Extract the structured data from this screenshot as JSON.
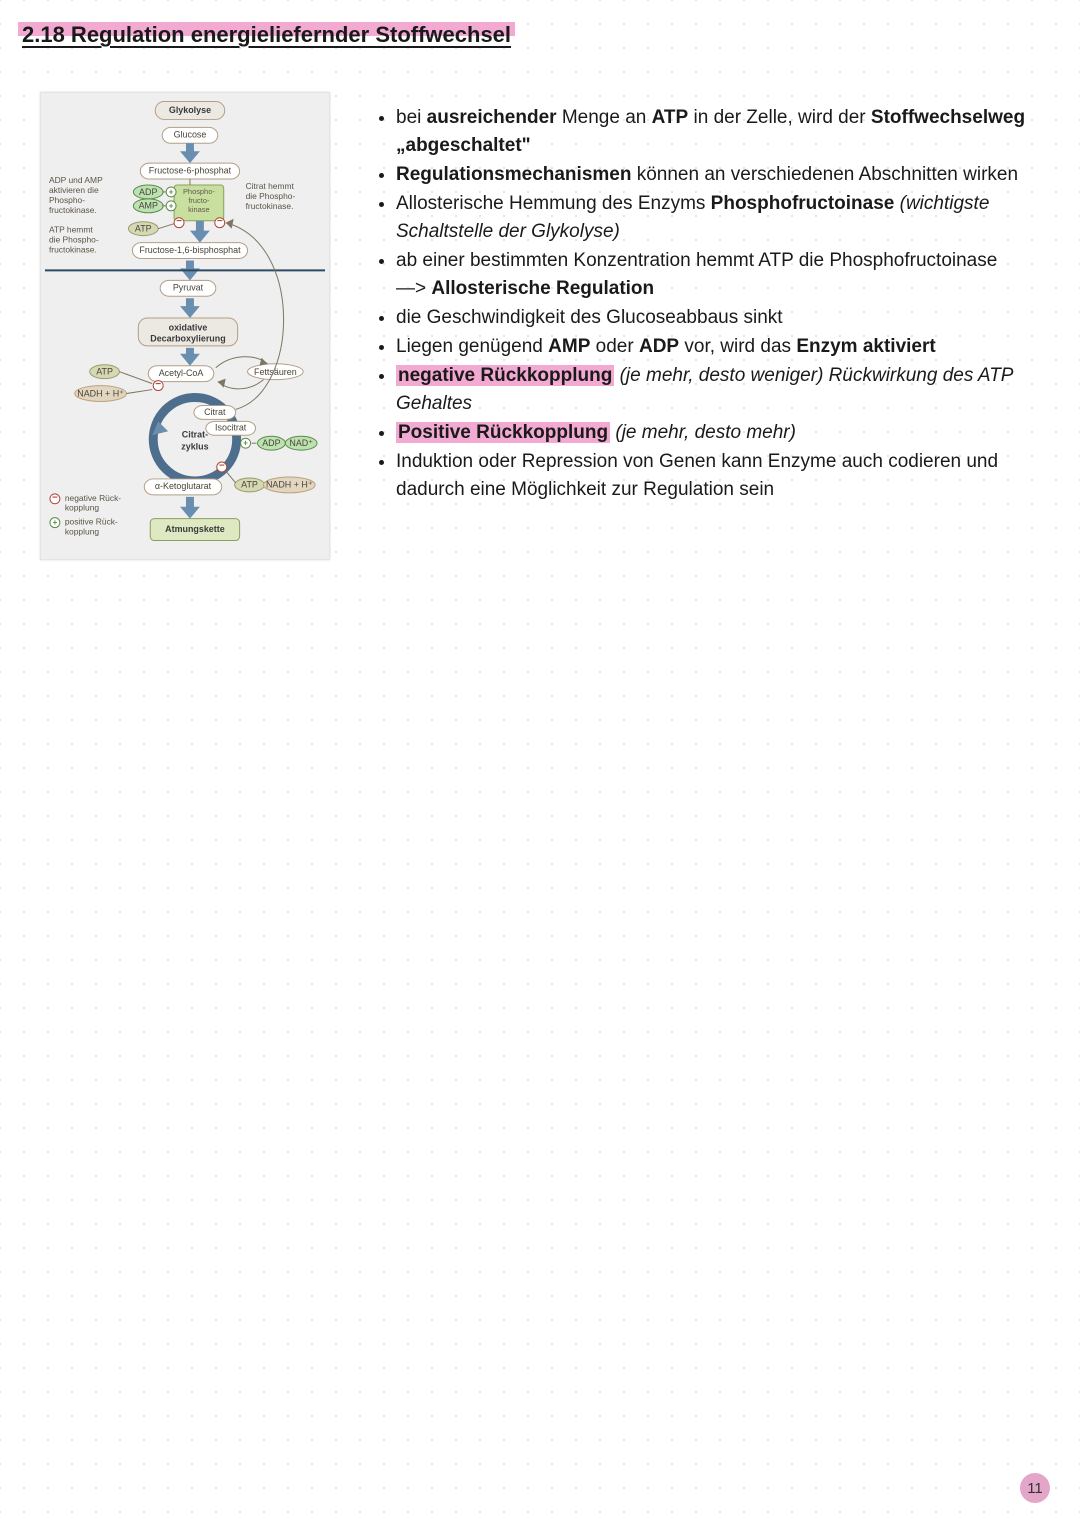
{
  "page": {
    "number": "11"
  },
  "title": "2.18 Regulation energieliefernder Stoffwechsel",
  "colors": {
    "highlight": "#f2a9d2",
    "pageBadge": "#e4a6c8",
    "dotGrid": "#dcdcdc",
    "figureBg": "#efefef",
    "arrowBlue": "#6a8eb0",
    "cycleBlue": "#4e6e8e",
    "greenFill": "#bde2b1"
  },
  "figure": {
    "type": "flowchart",
    "header": "Glykolyse",
    "nodes": {
      "glucose": "Glucose",
      "f6p": "Fructose-6-phosphat",
      "pfk": "Phospho-\nfructo-\nkinase",
      "f16bp": "Fructose-1,6-bisphosphat",
      "pyruvat": "Pyruvat",
      "oxdecarb": "oxidative\nDecarboxylierung",
      "acoa": "Acetyl-CoA",
      "fett": "Fettsäuren",
      "citrat": "Citrat",
      "isocitrat": "Isocitrat",
      "aketo": "α-Ketoglutarat",
      "cycle": "Citrat-\nzyklus",
      "atmung": "Atmungskette"
    },
    "smallLabels": {
      "adp": "ADP",
      "amp": "AMP",
      "atp": "ATP",
      "nad": "NAD⁺",
      "nadh": "NADH + H⁺"
    },
    "annotations": {
      "left1": "ADP und AMP\naktivieren die\nPhospho-\nfructokinase.",
      "left2": "ATP hemmt\ndie Phospho-\nfructokinase.",
      "right1": "Citrat hemmt\ndie Phospho-\nfructokinase.",
      "legendNeg": "negative Rück-\nkopplung",
      "legendPos": "positive Rück-\nkopplung"
    }
  },
  "bullets": {
    "block1": [
      {
        "parts": [
          {
            "t": "bei "
          },
          {
            "t": "ausreichender",
            "b": true
          },
          {
            "t": " Menge an "
          },
          {
            "t": "ATP",
            "b": true
          },
          {
            "t": " in der Zelle, wird der "
          },
          {
            "t": "Stoffwechselweg „abgeschaltet\"",
            "b": true
          }
        ]
      },
      {
        "parts": [
          {
            "t": "Regulationsmechanismen",
            "b": true
          },
          {
            "t": " können an verschiedenen Abschnitten wirken"
          }
        ]
      },
      {
        "parts": [
          {
            "t": "Allosterische Hemmung des Enzyms "
          },
          {
            "t": "Phosphofructoinase",
            "b": true
          },
          {
            "t": " (wichtigste Schaltstelle der Glykolyse)",
            "i": true
          }
        ]
      },
      {
        "parts": [
          {
            "t": "ab einer bestimmten Konzentration hemmt ATP die Phosphofructoinase"
          },
          {
            "br": true
          },
          {
            "t": "—> "
          },
          {
            "t": "Allosterische Regulation",
            "b": true
          }
        ]
      },
      {
        "parts": [
          {
            "t": "die Geschwindigkeit des Glucoseabbaus sinkt"
          }
        ]
      },
      {
        "parts": [
          {
            "t": "Liegen genügend "
          },
          {
            "t": "AMP",
            "b": true
          },
          {
            "t": " oder "
          },
          {
            "t": "ADP",
            "b": true
          },
          {
            "t": " vor, wird das "
          },
          {
            "t": "Enzym aktiviert",
            "b": true
          }
        ]
      },
      {
        "parts": [
          {
            "t": "negative Rückkopplung",
            "b": true,
            "hl": true
          },
          {
            "t": " (je mehr, desto weniger) Rückwirkung des ATP Gehaltes",
            "i": true
          }
        ]
      },
      {
        "parts": [
          {
            "t": "Positive Rückkopplung",
            "b": true,
            "hl": true
          },
          {
            "t": " (je mehr, desto mehr)",
            "i": true
          }
        ]
      }
    ],
    "block2": [
      {
        "parts": [
          {
            "t": "Induktion oder Repression von Genen kann Enzyme auch codieren und dadurch eine Möglichkeit zur Regulation sein"
          }
        ]
      }
    ]
  }
}
